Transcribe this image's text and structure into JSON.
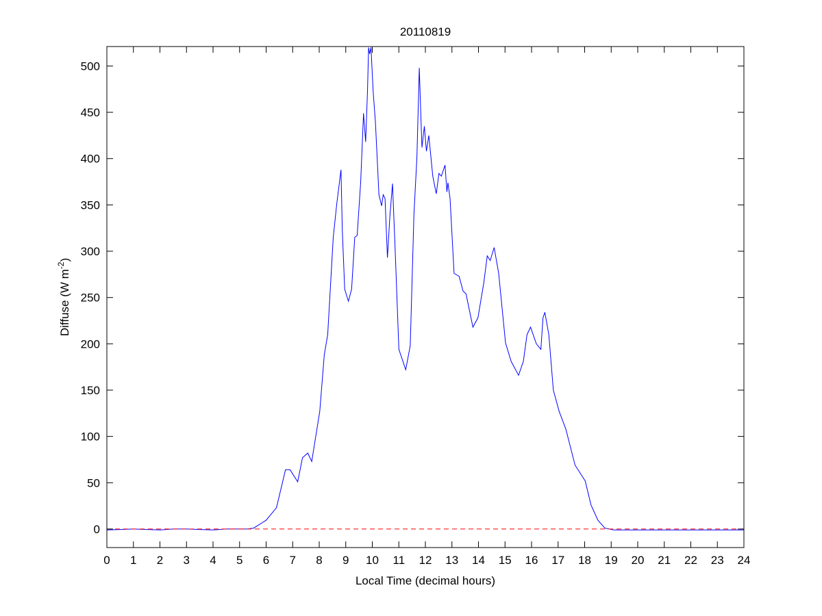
{
  "chart_data": {
    "type": "line",
    "title": "20110819",
    "xlabel": "Local Time (decimal hours)",
    "ylabel": {
      "text": "Diffuse (W m",
      "superscript": "-2",
      "suffix": ")"
    },
    "xlim": [
      0,
      24
    ],
    "ylim": [
      -20,
      521
    ],
    "xticks": [
      0,
      1,
      2,
      3,
      4,
      5,
      6,
      7,
      8,
      9,
      10,
      11,
      12,
      13,
      14,
      15,
      16,
      17,
      18,
      19,
      20,
      21,
      22,
      23,
      24
    ],
    "yticks": [
      0,
      50,
      100,
      150,
      200,
      250,
      300,
      350,
      400,
      450,
      500
    ],
    "grid": false,
    "legend": "none",
    "series": [
      {
        "color": "#0000ff",
        "style": "solid",
        "x": [
          0,
          0.5,
          1,
          1.5,
          2,
          2.5,
          3,
          3.5,
          4,
          4.5,
          5,
          5.3,
          5.53,
          6.0,
          6.39,
          6.73,
          6.9,
          7.19,
          7.37,
          7.57,
          7.72,
          8.02,
          8.19,
          8.32,
          8.53,
          8.66,
          8.82,
          8.87,
          8.96,
          9.1,
          9.22,
          9.34,
          9.43,
          9.56,
          9.67,
          9.75,
          9.82,
          9.86,
          9.9,
          9.95,
          10.03,
          10.12,
          10.25,
          10.35,
          10.41,
          10.48,
          10.57,
          10.66,
          10.76,
          10.86,
          11.0,
          11.26,
          11.43,
          11.57,
          11.68,
          11.77,
          11.83,
          11.87,
          11.96,
          12.04,
          12.13,
          12.28,
          12.41,
          12.51,
          12.6,
          12.74,
          12.81,
          12.85,
          12.93,
          13.08,
          13.27,
          13.42,
          13.53,
          13.79,
          13.98,
          14.2,
          14.33,
          14.44,
          14.59,
          14.76,
          15.02,
          15.23,
          15.51,
          15.69,
          15.83,
          15.96,
          16.18,
          16.35,
          16.43,
          16.5,
          16.65,
          16.82,
          17.04,
          17.29,
          17.64,
          18.02,
          18.24,
          18.5,
          18.76,
          19.1,
          20,
          21,
          22,
          23,
          24
        ],
        "y": [
          -1,
          -0.5,
          0,
          -0.5,
          -1,
          0,
          0,
          -0.5,
          -1,
          0,
          0,
          0,
          1,
          9.5,
          23,
          64,
          64,
          51,
          77,
          82,
          73,
          127,
          188,
          210,
          315,
          351,
          388,
          323,
          259,
          246,
          259,
          315,
          317,
          374,
          449,
          418,
          473,
          520,
          513,
          520,
          473,
          439,
          361,
          349,
          361,
          357,
          293,
          337,
          373,
          303,
          194,
          172,
          198,
          340,
          401,
          498,
          446,
          412,
          435,
          408,
          425,
          381,
          362,
          384,
          381,
          393,
          364,
          374,
          357,
          276,
          273,
          257,
          254,
          218,
          228,
          266,
          295,
          290,
          304,
          276,
          201,
          181,
          166,
          181,
          210,
          218,
          200,
          194,
          228,
          234,
          210,
          150,
          127,
          108,
          69,
          52,
          26,
          9.5,
          1,
          -1,
          -1,
          -1,
          -1,
          -1,
          -1
        ]
      },
      {
        "color": "#ff0000",
        "style": "dashed",
        "x": [
          0,
          24
        ],
        "y": [
          0,
          0
        ]
      }
    ]
  }
}
